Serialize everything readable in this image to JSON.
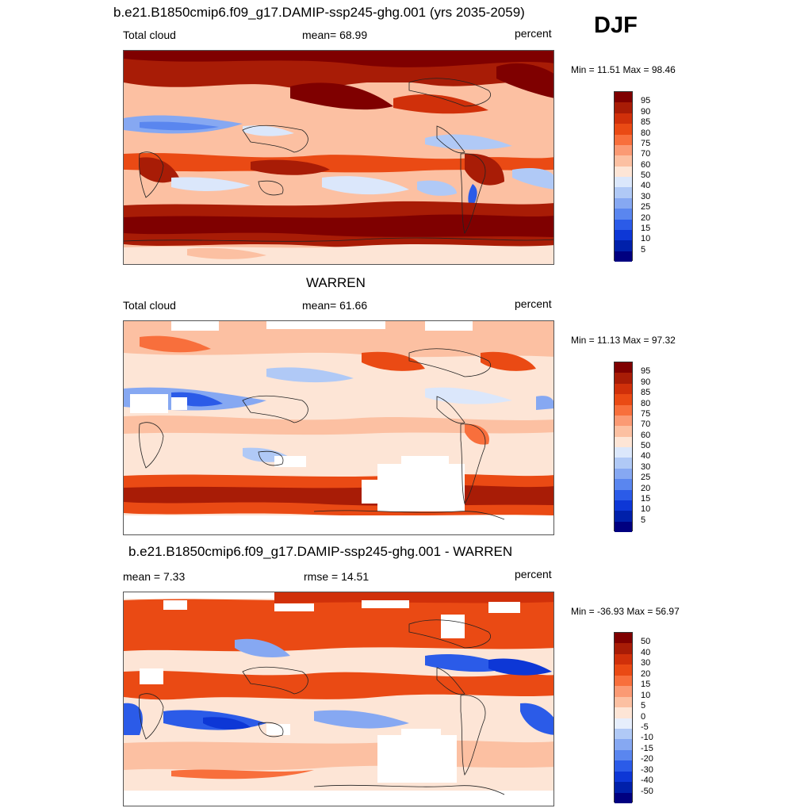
{
  "header": {
    "season": "DJF"
  },
  "panels": [
    {
      "title": "b.e21.B1850cmip6.f09_g17.DAMIP-ssp245-ghg.001 (yrs 2035-2059)",
      "left_label": "Total cloud",
      "center_label": "mean=  68.99",
      "right_label": "percent",
      "minmax": "Min =  11.51 Max =  98.46",
      "colorbar": {
        "labels": [
          "95",
          "90",
          "85",
          "80",
          "75",
          "70",
          "60",
          "50",
          "40",
          "30",
          "25",
          "20",
          "15",
          "10",
          "5"
        ],
        "colors": [
          "#7f0000",
          "#a81c06",
          "#d0300a",
          "#ea4a14",
          "#f86f3c",
          "#fb9a74",
          "#fcc0a2",
          "#fde5d6",
          "#dbe7fb",
          "#b0c9f6",
          "#86a8f2",
          "#5a86ef",
          "#2b5be8",
          "#0d37d6",
          "#0020aa",
          "#000080"
        ]
      }
    },
    {
      "title": "WARREN",
      "left_label": "Total cloud",
      "center_label": "mean=  61.66",
      "right_label": "percent",
      "minmax": "Min =  11.13 Max =  97.32",
      "colorbar": {
        "labels": [
          "95",
          "90",
          "85",
          "80",
          "75",
          "70",
          "60",
          "50",
          "40",
          "30",
          "25",
          "20",
          "15",
          "10",
          "5"
        ],
        "colors": [
          "#7f0000",
          "#a81c06",
          "#d0300a",
          "#ea4a14",
          "#f86f3c",
          "#fb9a74",
          "#fcc0a2",
          "#fde5d6",
          "#dbe7fb",
          "#b0c9f6",
          "#86a8f2",
          "#5a86ef",
          "#2b5be8",
          "#0d37d6",
          "#0020aa",
          "#000080"
        ]
      }
    },
    {
      "title": "b.e21.B1850cmip6.f09_g17.DAMIP-ssp245-ghg.001 - WARREN",
      "left_label": "mean =   7.33",
      "center_label": "rmse =  14.51",
      "right_label": "percent",
      "minmax": "Min = -36.93 Max =  56.97",
      "colorbar": {
        "labels": [
          "50",
          "40",
          "30",
          "20",
          "15",
          "10",
          "5",
          "0",
          "-5",
          "-10",
          "-15",
          "-20",
          "-30",
          "-40",
          "-50"
        ],
        "colors": [
          "#7f0000",
          "#a81c06",
          "#d0300a",
          "#ea4a14",
          "#f86f3c",
          "#fb9a74",
          "#fcc0a2",
          "#fde5d6",
          "#e6eefc",
          "#b0c9f6",
          "#86a8f2",
          "#5a86ef",
          "#2b5be8",
          "#0d37d6",
          "#0020aa",
          "#000080"
        ]
      }
    }
  ]
}
